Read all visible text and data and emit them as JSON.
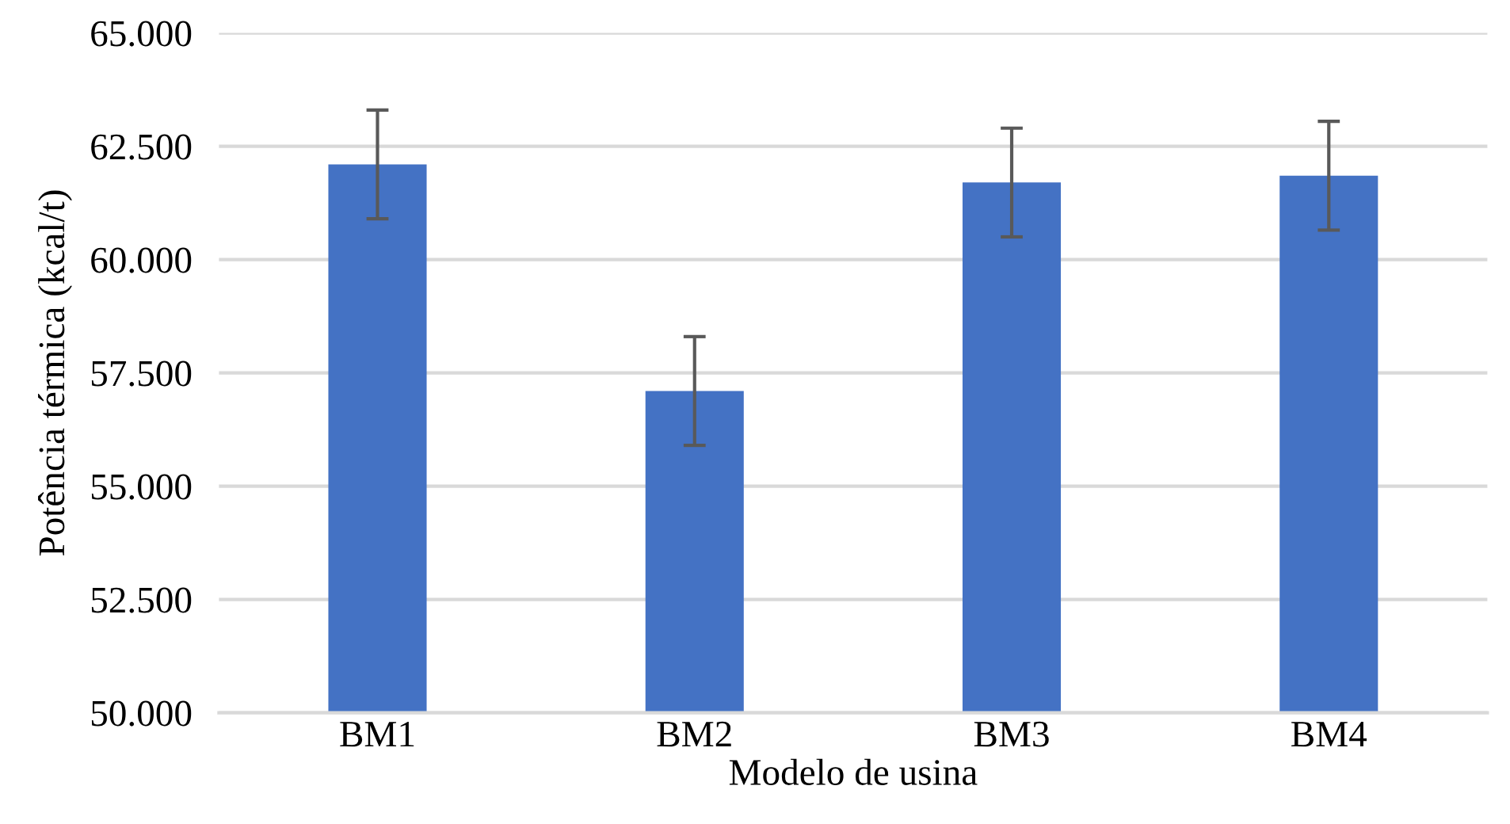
{
  "chart_data": {
    "type": "bar",
    "xlabel": "Modelo de usina",
    "ylabel": "Potência térmica (kcal/t)",
    "categories": [
      "BM1",
      "BM2",
      "BM3",
      "BM4"
    ],
    "values": [
      62100,
      57100,
      61700,
      61850
    ],
    "errors": [
      1200,
      1200,
      1200,
      1200
    ],
    "color": "#4472c4",
    "ylim": [
      50000,
      65000
    ],
    "yticks": [
      {
        "value": 50000,
        "label": "50.000"
      },
      {
        "value": 52500,
        "label": "52.500"
      },
      {
        "value": 55000,
        "label": "55.000"
      },
      {
        "value": 57500,
        "label": "57.500"
      },
      {
        "value": 60000,
        "label": "60.000"
      },
      {
        "value": 62500,
        "label": "62.500"
      },
      {
        "value": 65000,
        "label": "65.000"
      }
    ],
    "grid": "y"
  }
}
